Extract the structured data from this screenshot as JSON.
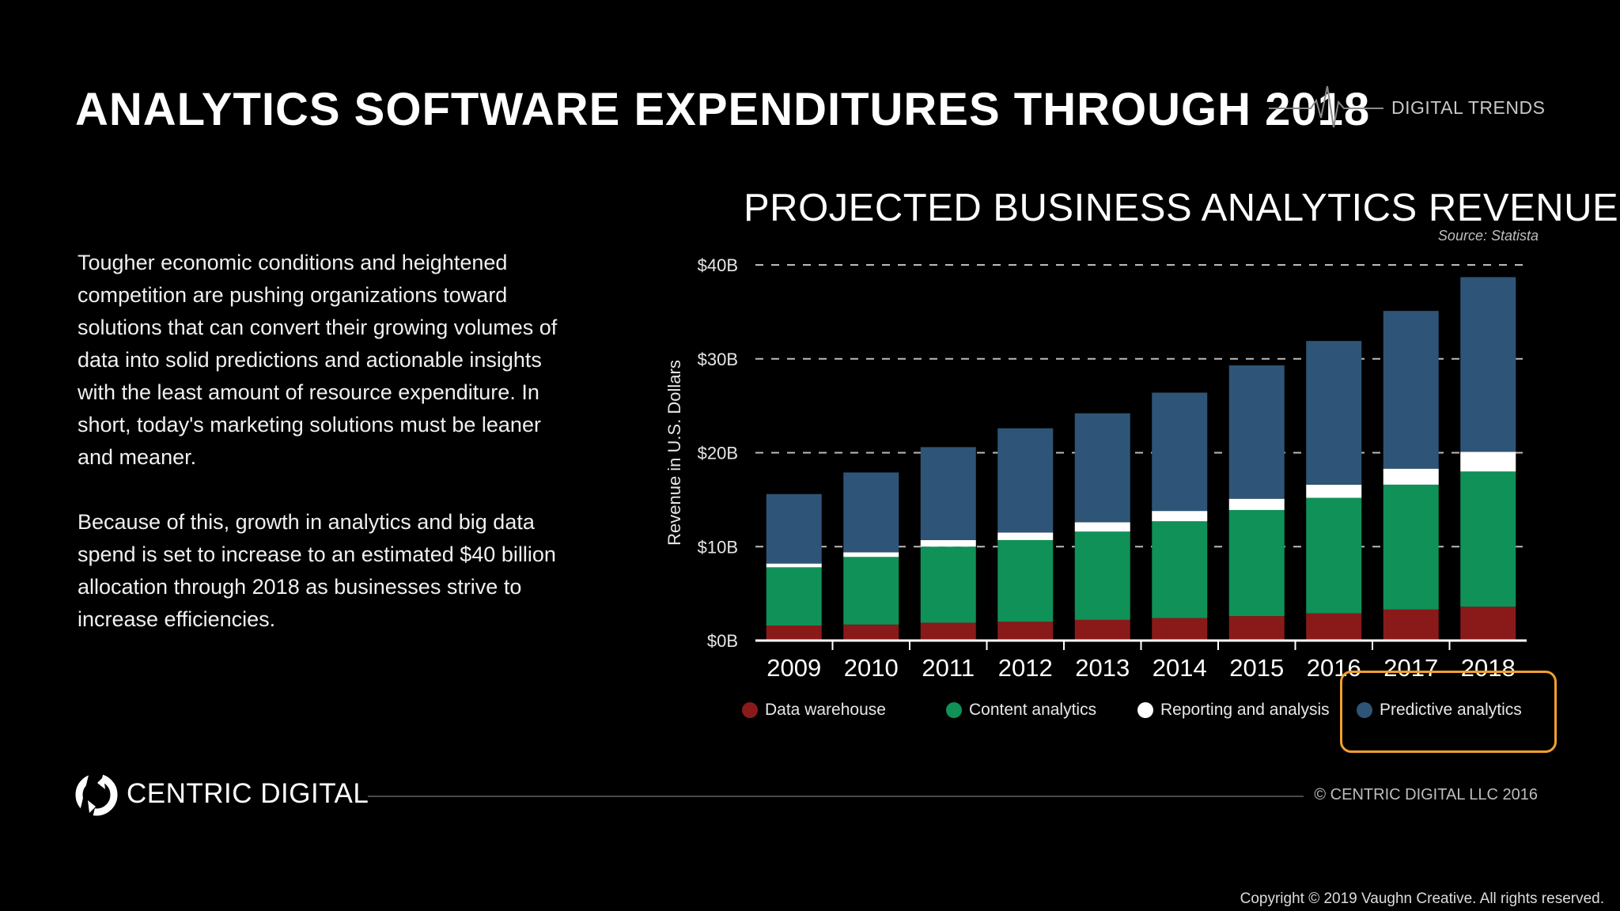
{
  "header": {
    "title": "ANALYTICS SOFTWARE EXPENDITURES THROUGH 2018",
    "brand": "DIGITAL TRENDS"
  },
  "body": {
    "paragraph1": "Tougher economic conditions and heightened competition are pushing organizations toward solutions that can convert their growing volumes of data into solid predictions and actionable insights with the least amount of resource expenditure. In short, today's marketing solutions must be leaner and meaner.",
    "paragraph2": "Because of this, growth in analytics and big data spend is set to increase to an estimated $40 billion allocation through 2018 as businesses strive to increase efficiencies."
  },
  "chart_data": {
    "type": "bar",
    "stacked": true,
    "title": "PROJECTED BUSINESS ANALYTICS REVENUE",
    "source": "Source: Statista",
    "xlabel": "",
    "ylabel": "Revenue in U.S. Dollars",
    "ylim": [
      0,
      40
    ],
    "yticks": [
      0,
      10,
      20,
      30,
      40
    ],
    "ytick_labels": [
      "$0B",
      "$10B",
      "$20B",
      "$30B",
      "$40B"
    ],
    "grid": true,
    "categories": [
      "2009",
      "2010",
      "2011",
      "2012",
      "2013",
      "2014",
      "2015",
      "2016",
      "2017",
      "2018"
    ],
    "series": [
      {
        "name": "Data warehouse",
        "color": "#8a1a1a",
        "values": [
          1.6,
          1.7,
          1.9,
          2.0,
          2.2,
          2.4,
          2.6,
          2.9,
          3.3,
          3.6
        ]
      },
      {
        "name": "Content analytics",
        "color": "#0f9158",
        "values": [
          6.2,
          7.2,
          8.1,
          8.7,
          9.4,
          10.3,
          11.3,
          12.3,
          13.3,
          14.4
        ]
      },
      {
        "name": "Reporting and analysis",
        "color": "#ffffff",
        "values": [
          0.4,
          0.5,
          0.7,
          0.8,
          1.0,
          1.1,
          1.2,
          1.4,
          1.7,
          2.1
        ]
      },
      {
        "name": "Predictive analytics",
        "color": "#2e5577",
        "values": [
          7.4,
          8.5,
          9.9,
          11.1,
          11.6,
          12.6,
          14.2,
          15.3,
          16.8,
          18.6
        ]
      }
    ],
    "legend_position": "bottom",
    "highlighted_legend_entry": "Predictive analytics"
  },
  "footer": {
    "logo_text": "CENTRIC DIGITAL",
    "copyright_centric": "© CENTRIC DIGITAL LLC 2016",
    "copyright_vaughn": "Copyright © 2019 Vaughn Creative. All rights reserved."
  },
  "colors": {
    "background": "#000000",
    "highlight_box": "#f2a02d",
    "grid": "#bbbbbb"
  }
}
